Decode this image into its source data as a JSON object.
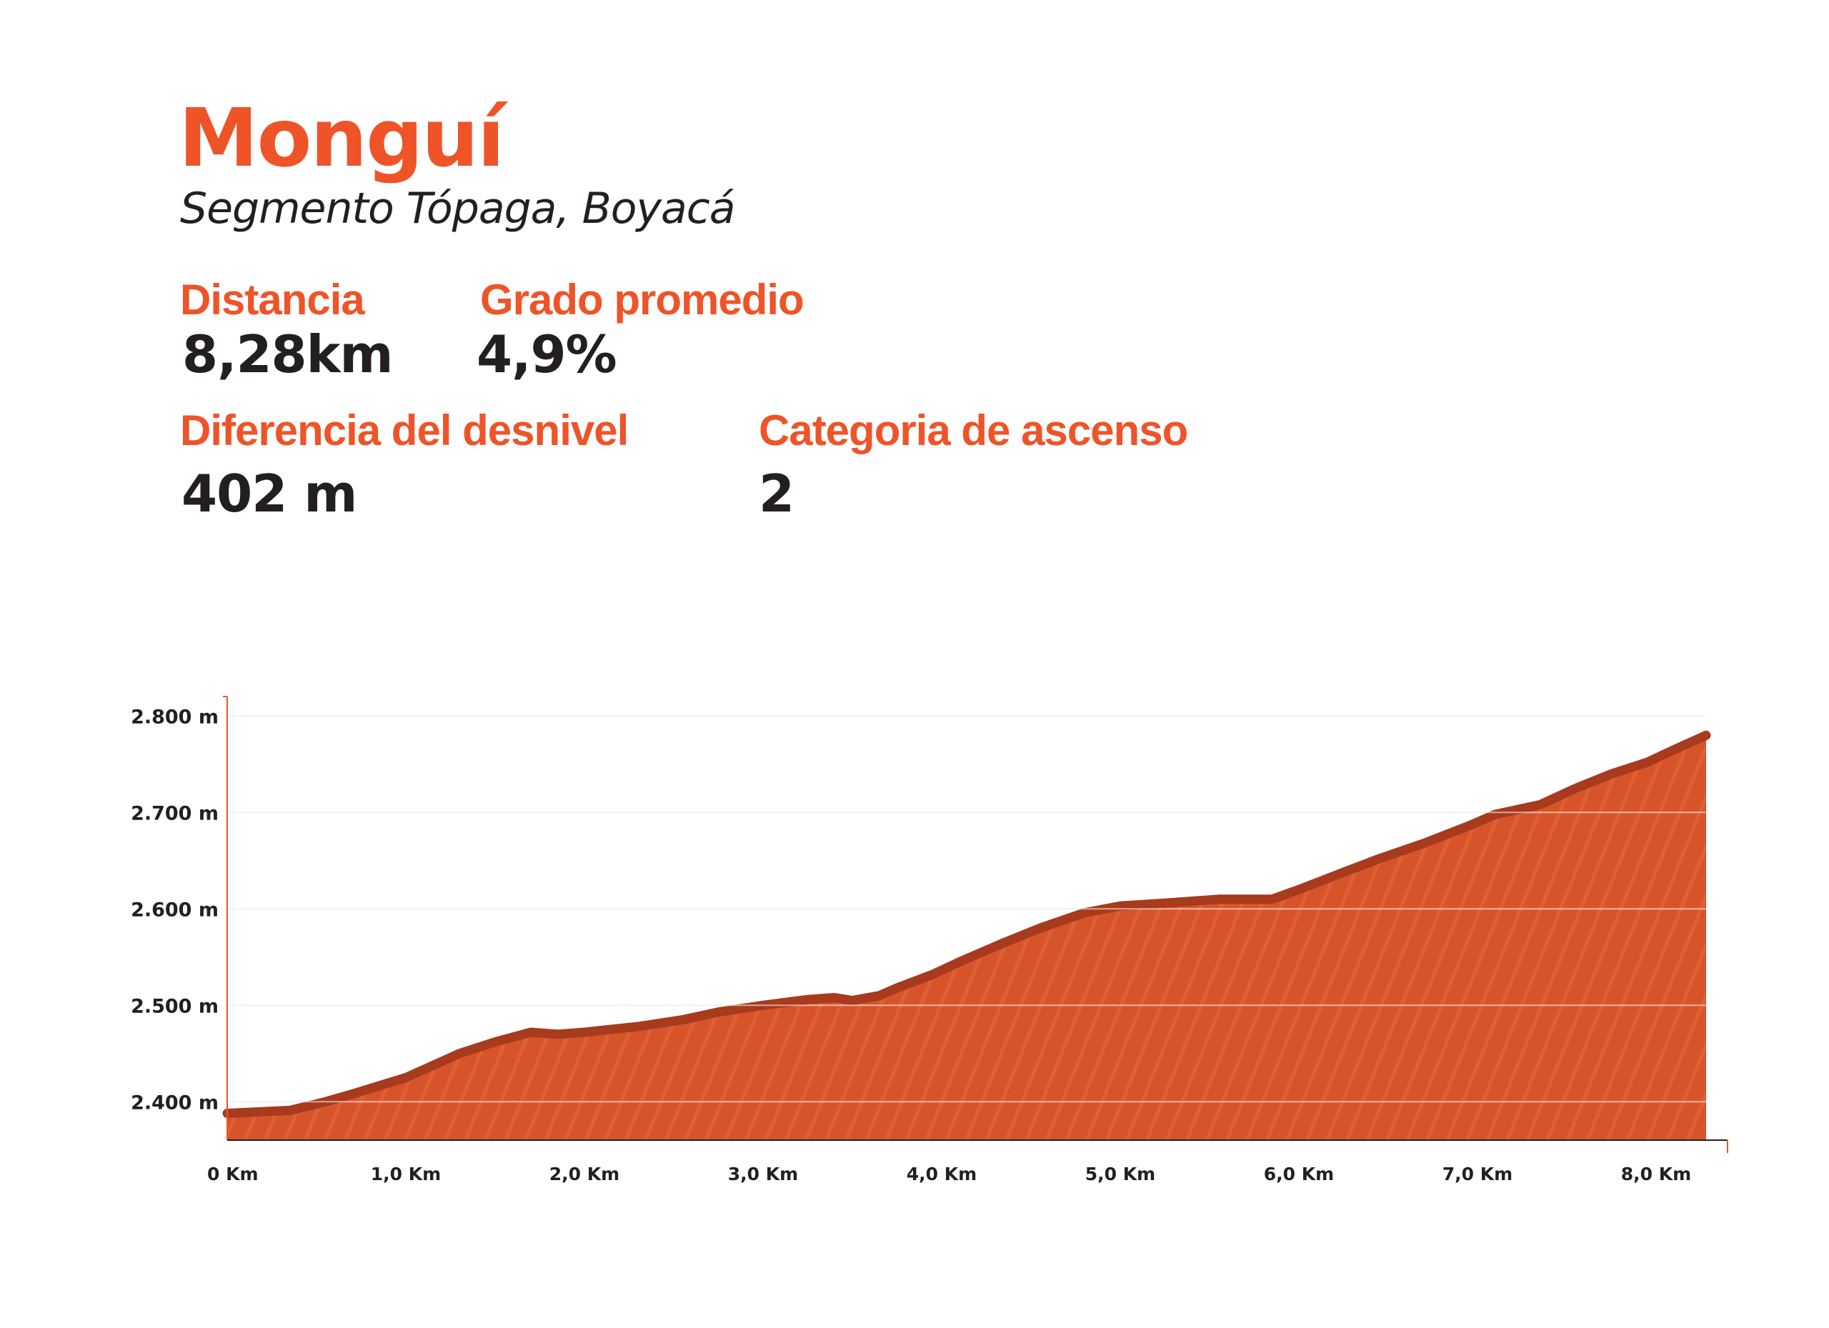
{
  "header": {
    "title": "Monguí",
    "subtitle": "Segmento Tópaga, Boyacá"
  },
  "stats": {
    "distance_label": "Distancia",
    "distance_value": "8,28km",
    "grade_label": "Grado promedio",
    "grade_value": "4,9%",
    "elevation_label": "Diferencia del desnivel",
    "elevation_value": "402 m",
    "category_label": "Categoria de ascenso",
    "category_value": "2"
  },
  "colors": {
    "accent": "#ee5428",
    "fill": "#d7542b",
    "outline": "#a83a1d",
    "text": "#231f20"
  },
  "chart_data": {
    "type": "area",
    "title": "",
    "xlabel": "",
    "ylabel": "",
    "xlim": [
      0,
      8.4
    ],
    "ylim": [
      2335,
      2835
    ],
    "x_ticks": [
      0,
      1,
      2,
      3,
      4,
      5,
      6,
      7,
      8
    ],
    "x_tick_labels": [
      "0 Km",
      "1,0 Km",
      "2,0 Km",
      "3,0 Km",
      "4,0 Km",
      "5,0 Km",
      "6,0 Km",
      "7,0 Km",
      "8,0 Km"
    ],
    "y_ticks": [
      2400,
      2500,
      2600,
      2700,
      2800
    ],
    "y_tick_labels": [
      "2.400 m",
      "2.500 m",
      "2.600 m",
      "2.700 m",
      "2.800 m"
    ],
    "grid": true,
    "legend": "none",
    "x": [
      0,
      0.35,
      0.55,
      0.7,
      1.0,
      1.3,
      1.5,
      1.7,
      1.85,
      2.0,
      2.3,
      2.55,
      2.75,
      3.0,
      3.25,
      3.4,
      3.5,
      3.65,
      3.75,
      3.95,
      4.1,
      4.35,
      4.55,
      4.8,
      5.0,
      5.25,
      5.55,
      5.85,
      6.0,
      6.25,
      6.45,
      6.7,
      6.95,
      7.1,
      7.35,
      7.55,
      7.75,
      7.95,
      8.1,
      8.28
    ],
    "series": [
      {
        "values": [
          2388,
          2391,
          2400,
          2408,
          2425,
          2450,
          2462,
          2472,
          2470,
          2472,
          2478,
          2485,
          2493,
          2500,
          2506,
          2508,
          2505,
          2510,
          2518,
          2532,
          2545,
          2565,
          2580,
          2596,
          2603,
          2606,
          2610,
          2610,
          2620,
          2638,
          2652,
          2668,
          2686,
          2698,
          2708,
          2725,
          2740,
          2752,
          2765,
          2780
        ]
      }
    ]
  }
}
